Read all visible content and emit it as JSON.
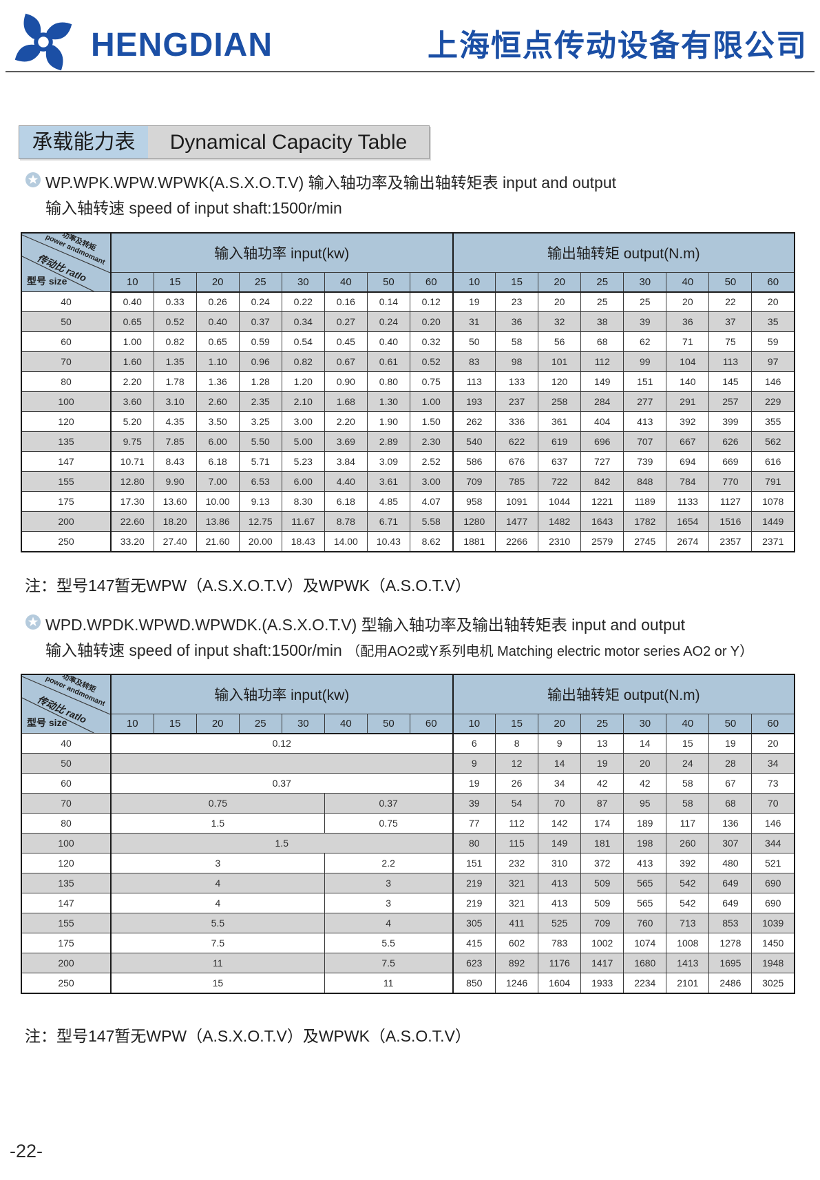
{
  "header": {
    "brand": "HENGDIAN",
    "company": "上海恒点传动设备有限公司"
  },
  "title": {
    "zh": "承载能力表",
    "en": "Dynamical Capacity Table"
  },
  "colors": {
    "brand_blue": "#1b4fa5",
    "table_header_bg": "#aec6d9",
    "row_alt_bg": "#d4d4d4",
    "title_zh_bg": "#b9d2e6",
    "title_en_bg": "#d6d6d6"
  },
  "table_labels": {
    "corner_power_zh": "功率及转矩",
    "corner_power_en": "power andmomant",
    "corner_ratio": "传动比 ratlo",
    "corner_size": "型号 size",
    "input_header": "输入轴功率 input(kw)",
    "output_header": "输出轴转矩 output(N.m)",
    "ratios": [
      "10",
      "15",
      "20",
      "25",
      "30",
      "40",
      "50",
      "60"
    ]
  },
  "section1": {
    "heading1": "WP.WPK.WPW.WPWK(A.S.X.O.T.V) 输入轴功率及输出轴转矩表  input and output",
    "heading2": "输入轴转速 speed of input shaft:1500r/min",
    "note": "注：型号147暂无WPW（A.S.X.O.T.V）及WPWK（A.S.O.T.V）"
  },
  "section2": {
    "heading1": "WPD.WPDK.WPWD.WPWDK.(A.S.X.O.T.V) 型输入轴功率及输出轴转矩表  input and output",
    "heading2": "输入轴转速 speed of input shaft:1500r/min ",
    "heading2_paren": "（配用AO2或Y系列电机 Matching electric motor series AO2 or Y）",
    "note": "注：型号147暂无WPW（A.S.X.O.T.V）及WPWK（A.S.O.T.V）"
  },
  "table1": {
    "rows": [
      {
        "size": "40",
        "input": [
          "0.40",
          "0.33",
          "0.26",
          "0.24",
          "0.22",
          "0.16",
          "0.14",
          "0.12"
        ],
        "output": [
          "19",
          "23",
          "20",
          "25",
          "25",
          "20",
          "22",
          "20"
        ]
      },
      {
        "size": "50",
        "input": [
          "0.65",
          "0.52",
          "0.40",
          "0.37",
          "0.34",
          "0.27",
          "0.24",
          "0.20"
        ],
        "output": [
          "31",
          "36",
          "32",
          "38",
          "39",
          "36",
          "37",
          "35"
        ]
      },
      {
        "size": "60",
        "input": [
          "1.00",
          "0.82",
          "0.65",
          "0.59",
          "0.54",
          "0.45",
          "0.40",
          "0.32"
        ],
        "output": [
          "50",
          "58",
          "56",
          "68",
          "62",
          "71",
          "75",
          "59"
        ]
      },
      {
        "size": "70",
        "input": [
          "1.60",
          "1.35",
          "1.10",
          "0.96",
          "0.82",
          "0.67",
          "0.61",
          "0.52"
        ],
        "output": [
          "83",
          "98",
          "101",
          "112",
          "99",
          "104",
          "113",
          "97"
        ]
      },
      {
        "size": "80",
        "input": [
          "2.20",
          "1.78",
          "1.36",
          "1.28",
          "1.20",
          "0.90",
          "0.80",
          "0.75"
        ],
        "output": [
          "113",
          "133",
          "120",
          "149",
          "151",
          "140",
          "145",
          "146"
        ]
      },
      {
        "size": "100",
        "input": [
          "3.60",
          "3.10",
          "2.60",
          "2.35",
          "2.10",
          "1.68",
          "1.30",
          "1.00"
        ],
        "output": [
          "193",
          "237",
          "258",
          "284",
          "277",
          "291",
          "257",
          "229"
        ]
      },
      {
        "size": "120",
        "input": [
          "5.20",
          "4.35",
          "3.50",
          "3.25",
          "3.00",
          "2.20",
          "1.90",
          "1.50"
        ],
        "output": [
          "262",
          "336",
          "361",
          "404",
          "413",
          "392",
          "399",
          "355"
        ]
      },
      {
        "size": "135",
        "input": [
          "9.75",
          "7.85",
          "6.00",
          "5.50",
          "5.00",
          "3.69",
          "2.89",
          "2.30"
        ],
        "output": [
          "540",
          "622",
          "619",
          "696",
          "707",
          "667",
          "626",
          "562"
        ]
      },
      {
        "size": "147",
        "input": [
          "10.71",
          "8.43",
          "6.18",
          "5.71",
          "5.23",
          "3.84",
          "3.09",
          "2.52"
        ],
        "output": [
          "586",
          "676",
          "637",
          "727",
          "739",
          "694",
          "669",
          "616"
        ]
      },
      {
        "size": "155",
        "input": [
          "12.80",
          "9.90",
          "7.00",
          "6.53",
          "6.00",
          "4.40",
          "3.61",
          "3.00"
        ],
        "output": [
          "709",
          "785",
          "722",
          "842",
          "848",
          "784",
          "770",
          "791"
        ]
      },
      {
        "size": "175",
        "input": [
          "17.30",
          "13.60",
          "10.00",
          "9.13",
          "8.30",
          "6.18",
          "4.85",
          "4.07"
        ],
        "output": [
          "958",
          "1091",
          "1044",
          "1221",
          "1189",
          "1133",
          "1127",
          "1078"
        ]
      },
      {
        "size": "200",
        "input": [
          "22.60",
          "18.20",
          "13.86",
          "12.75",
          "11.67",
          "8.78",
          "6.71",
          "5.58"
        ],
        "output": [
          "1280",
          "1477",
          "1482",
          "1643",
          "1782",
          "1654",
          "1516",
          "1449"
        ]
      },
      {
        "size": "250",
        "input": [
          "33.20",
          "27.40",
          "21.60",
          "20.00",
          "18.43",
          "14.00",
          "10.43",
          "8.62"
        ],
        "output": [
          "1881",
          "2266",
          "2310",
          "2579",
          "2745",
          "2674",
          "2357",
          "2371"
        ]
      }
    ]
  },
  "table2": {
    "rows": [
      {
        "size": "40",
        "input_cells": [
          {
            "span": 8,
            "value": "0.12"
          }
        ],
        "output": [
          "6",
          "8",
          "9",
          "13",
          "14",
          "15",
          "19",
          "20"
        ]
      },
      {
        "size": "50",
        "input_cells": [
          {
            "span": 8,
            "value": ""
          }
        ],
        "output": [
          "9",
          "12",
          "14",
          "19",
          "20",
          "24",
          "28",
          "34"
        ]
      },
      {
        "size": "60",
        "input_cells": [
          {
            "span": 8,
            "value": "0.37"
          }
        ],
        "output": [
          "19",
          "26",
          "34",
          "42",
          "42",
          "58",
          "67",
          "73"
        ]
      },
      {
        "size": "70",
        "input_cells": [
          {
            "span": 5,
            "value": "0.75"
          },
          {
            "span": 3,
            "value": "0.37"
          }
        ],
        "output": [
          "39",
          "54",
          "70",
          "87",
          "95",
          "58",
          "68",
          "70"
        ]
      },
      {
        "size": "80",
        "input_cells": [
          {
            "span": 5,
            "value": "1.5"
          },
          {
            "span": 3,
            "value": "0.75"
          }
        ],
        "output": [
          "77",
          "112",
          "142",
          "174",
          "189",
          "117",
          "136",
          "146"
        ]
      },
      {
        "size": "100",
        "input_cells": [
          {
            "span": 8,
            "value": "1.5"
          }
        ],
        "output": [
          "80",
          "115",
          "149",
          "181",
          "198",
          "260",
          "307",
          "344"
        ]
      },
      {
        "size": "120",
        "input_cells": [
          {
            "span": 5,
            "value": "3"
          },
          {
            "span": 3,
            "value": "2.2"
          }
        ],
        "output": [
          "151",
          "232",
          "310",
          "372",
          "413",
          "392",
          "480",
          "521"
        ]
      },
      {
        "size": "135",
        "input_cells": [
          {
            "span": 5,
            "value": "4"
          },
          {
            "span": 3,
            "value": "3"
          }
        ],
        "output": [
          "219",
          "321",
          "413",
          "509",
          "565",
          "542",
          "649",
          "690"
        ]
      },
      {
        "size": "147",
        "input_cells": [
          {
            "span": 5,
            "value": "4"
          },
          {
            "span": 3,
            "value": "3"
          }
        ],
        "output": [
          "219",
          "321",
          "413",
          "509",
          "565",
          "542",
          "649",
          "690"
        ]
      },
      {
        "size": "155",
        "input_cells": [
          {
            "span": 5,
            "value": "5.5"
          },
          {
            "span": 3,
            "value": "4"
          }
        ],
        "output": [
          "305",
          "411",
          "525",
          "709",
          "760",
          "713",
          "853",
          "1039"
        ]
      },
      {
        "size": "175",
        "input_cells": [
          {
            "span": 5,
            "value": "7.5"
          },
          {
            "span": 3,
            "value": "5.5"
          }
        ],
        "output": [
          "415",
          "602",
          "783",
          "1002",
          "1074",
          "1008",
          "1278",
          "1450"
        ]
      },
      {
        "size": "200",
        "input_cells": [
          {
            "span": 5,
            "value": "11"
          },
          {
            "span": 3,
            "value": "7.5"
          }
        ],
        "output": [
          "623",
          "892",
          "1176",
          "1417",
          "1680",
          "1413",
          "1695",
          "1948"
        ]
      },
      {
        "size": "250",
        "input_cells": [
          {
            "span": 5,
            "value": "15"
          },
          {
            "span": 3,
            "value": "11"
          }
        ],
        "output": [
          "850",
          "1246",
          "1604",
          "1933",
          "2234",
          "2101",
          "2486",
          "3025"
        ]
      }
    ]
  },
  "page_number": "-22-"
}
